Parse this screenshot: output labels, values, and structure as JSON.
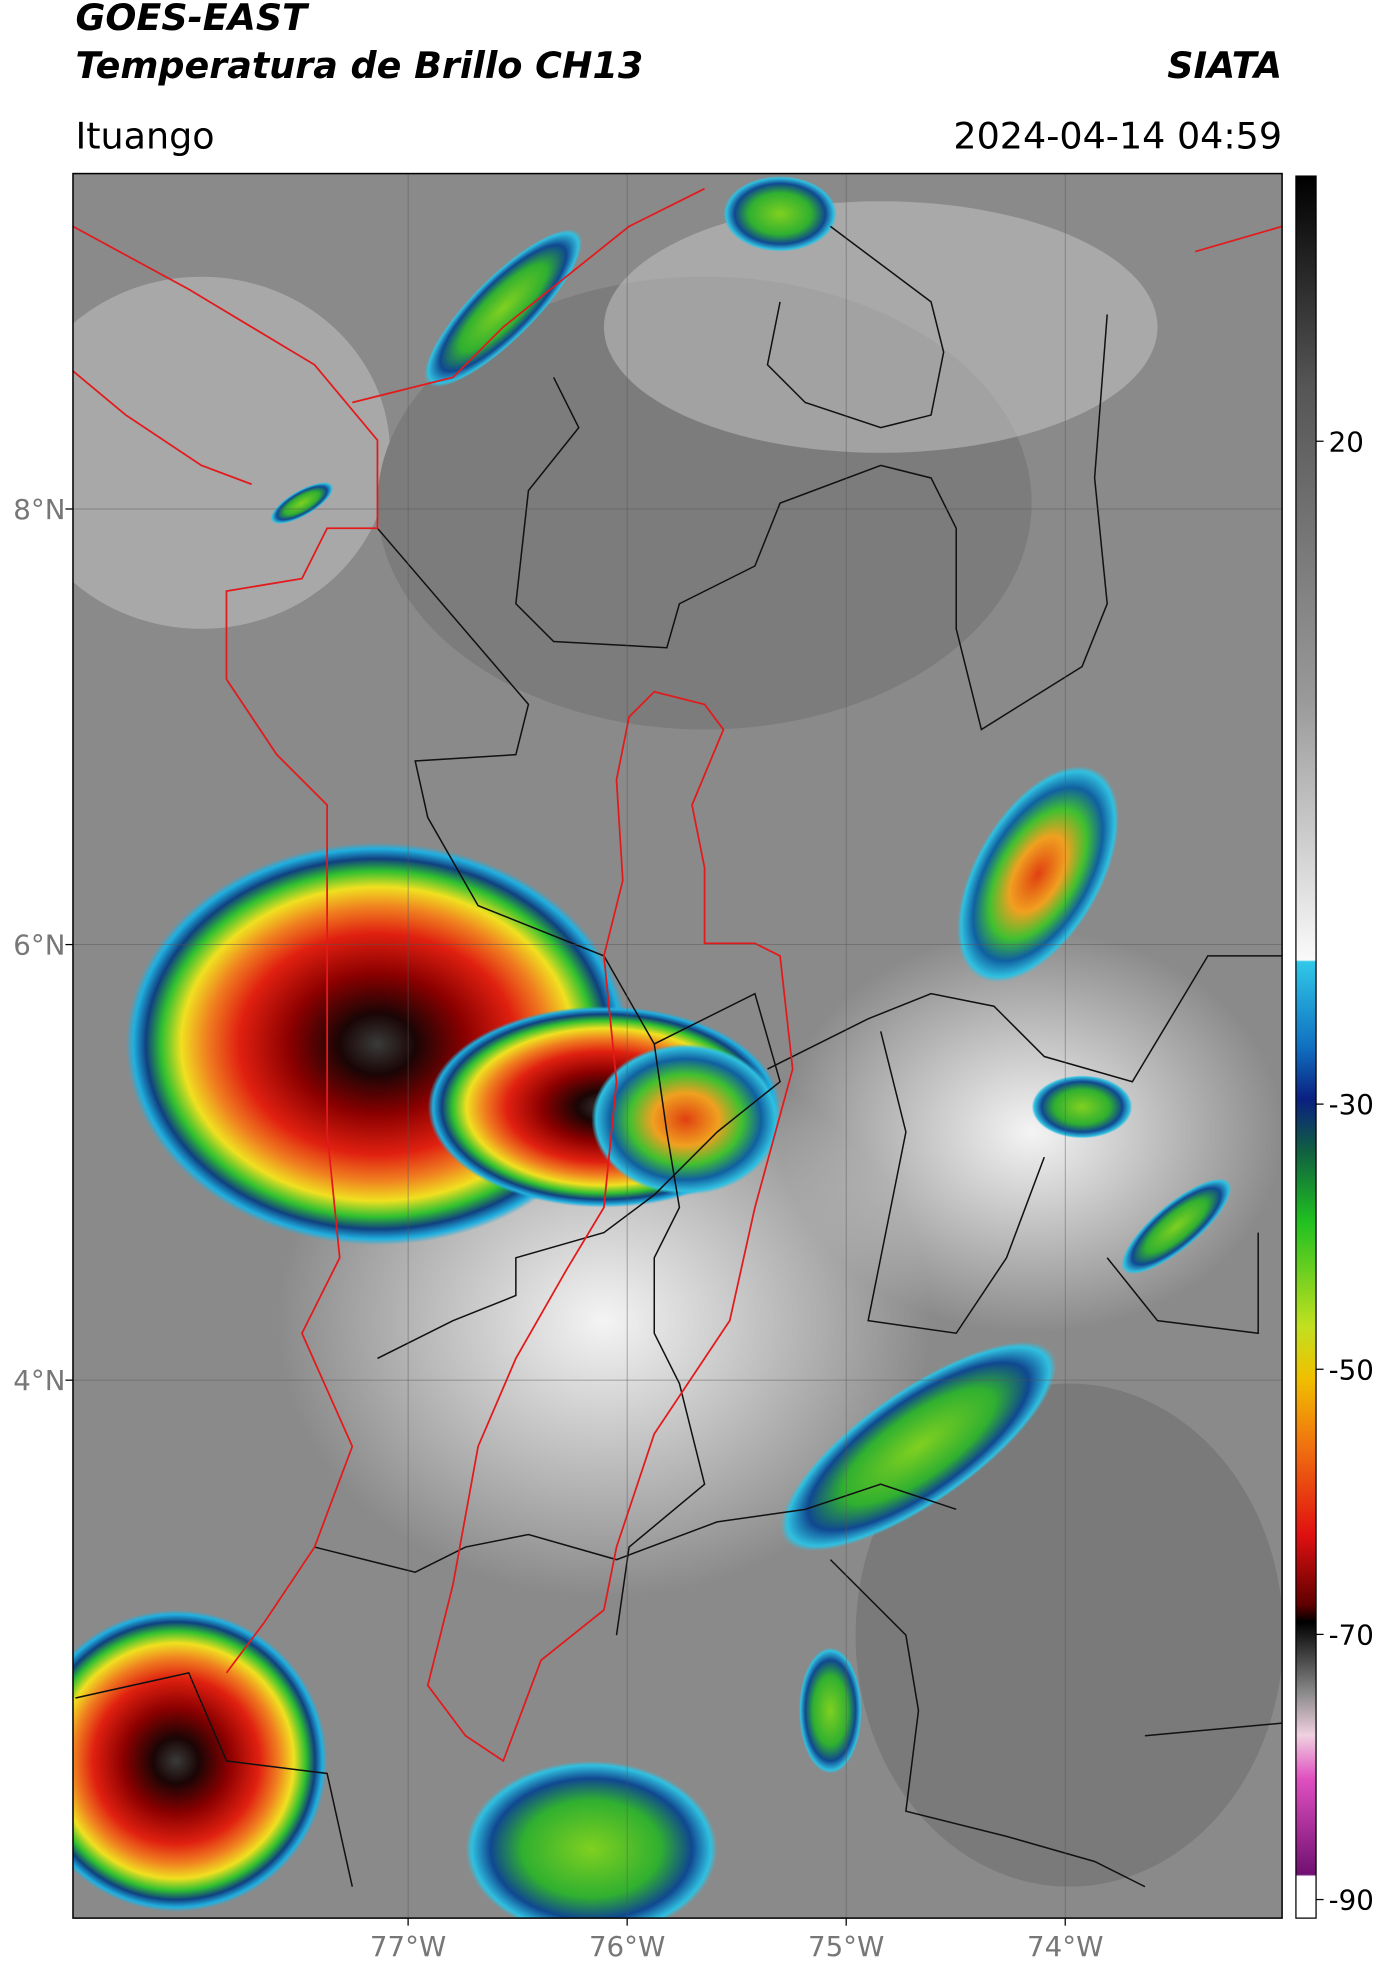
{
  "header": {
    "title": "GOES-EAST",
    "subtitle": "Temperatura de Brillo CH13",
    "source": "SIATA",
    "location": "Ituango",
    "datetime": "2024-04-14 04:59"
  },
  "map": {
    "xlim": [
      -78.53,
      -73.01
    ],
    "ylim": [
      1.53,
      9.54
    ],
    "xticks": [
      {
        "value": -77,
        "label": "77°W"
      },
      {
        "value": -76,
        "label": "76°W"
      },
      {
        "value": -75,
        "label": "75°W"
      },
      {
        "value": -74,
        "label": "74°W"
      }
    ],
    "yticks": [
      {
        "value": 8,
        "label": "8°N"
      },
      {
        "value": 6,
        "label": "6°N"
      },
      {
        "value": 4,
        "label": "4°N"
      }
    ],
    "grid": true
  },
  "colorbar": {
    "lim": [
      -91.4,
      40
    ],
    "ticks": [
      20,
      -30,
      -50,
      -70,
      -90
    ]
  }
}
